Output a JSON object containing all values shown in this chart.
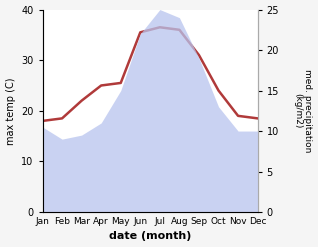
{
  "months": [
    "Jan",
    "Feb",
    "Mar",
    "Apr",
    "May",
    "Jun",
    "Jul",
    "Aug",
    "Sep",
    "Oct",
    "Nov",
    "Dec"
  ],
  "temp": [
    18,
    18.5,
    22,
    25,
    25.5,
    35.5,
    36.5,
    36.0,
    31,
    24,
    19,
    18.5
  ],
  "precip": [
    10.5,
    9.0,
    9.5,
    11,
    15,
    22,
    25,
    24,
    19,
    13,
    10,
    10
  ],
  "temp_color": "#b03a3a",
  "precip_color": "#b8c4ee",
  "ylabel_left": "max temp (C)",
  "ylabel_right": "med. precipitation\n(kg/m2)",
  "xlabel": "date (month)",
  "ylim_left": [
    0,
    40
  ],
  "ylim_right": [
    0,
    25
  ],
  "yticks_left": [
    0,
    10,
    20,
    30,
    40
  ],
  "yticks_right": [
    0,
    5,
    10,
    15,
    20,
    25
  ],
  "bg_color": "#f5f5f5",
  "plot_bg_color": "#ffffff",
  "temp_linewidth": 1.8
}
